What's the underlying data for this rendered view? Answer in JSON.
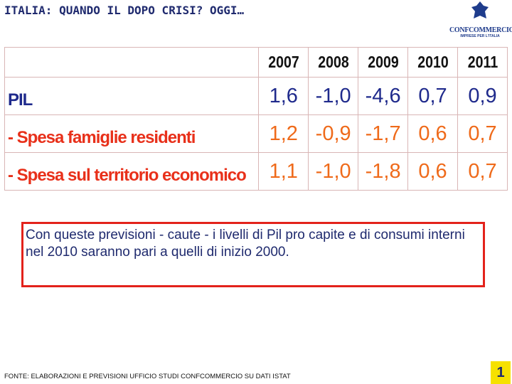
{
  "header": {
    "title": "ITALIA: QUANDO IL DOPO CRISI? OGGI…",
    "logo": "CONFCOMMERCIO",
    "logo_subtitle": "IMPRESE PER L'ITALIA"
  },
  "table": {
    "columns": [
      "2007",
      "2008",
      "2009",
      "2010",
      "2011"
    ],
    "rows": [
      [
        "PIL",
        "1,6",
        "-1,0",
        "-4,6",
        "0,7",
        "0,9"
      ],
      [
        "- Spesa famiglie residenti",
        "1,2",
        "-0,9",
        "-1,7",
        "0,6",
        "0,7"
      ],
      [
        "- Spesa sul territorio economico",
        "1,1",
        "-1,0",
        "-1,8",
        "0,6",
        "0,7"
      ]
    ]
  },
  "note": "Con queste previsioni - caute - i livelli di Pil pro capite e di consumi interni nel 2010 saranno pari a quelli di inizio 2000.",
  "footer": "FONTE: ELABORAZIONI E PREVISIONI UFFICIO STUDI CONFCOMMERCIO SU DATI ISTAT",
  "page_number": "1"
}
